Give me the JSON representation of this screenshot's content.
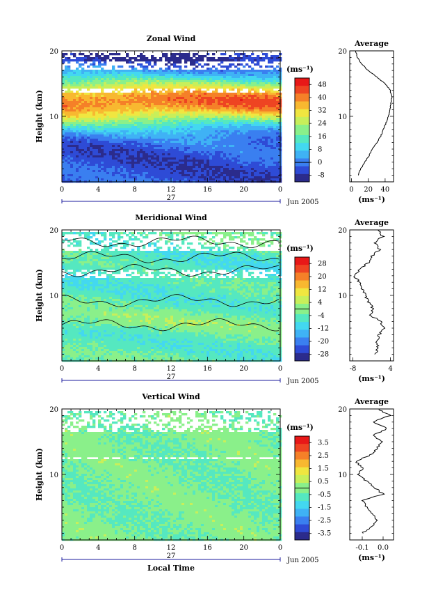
{
  "chart_data": [
    {
      "type": "heatmap",
      "title": "Zonal Wind",
      "ylabel": "Height (km)",
      "xlabel": "",
      "ylim": [
        0,
        20
      ],
      "yticks": [
        "20",
        "10"
      ],
      "ytick_values": [
        20,
        10
      ],
      "xticks": [
        "0",
        "4",
        "8",
        "12",
        "16",
        "20",
        "0"
      ],
      "date_label": "27",
      "month_label": "Jun 2005",
      "colorbar": {
        "unit": "(ms⁻¹)",
        "ticks": [
          "48",
          "40",
          "32",
          "24",
          "16",
          "8",
          "0",
          "-8"
        ],
        "range": [
          -12,
          52
        ]
      },
      "contours": false,
      "average": {
        "title": "Average",
        "xticks": [
          "0",
          "20",
          "40"
        ],
        "xtick_values": [
          0,
          20,
          40
        ],
        "xlim": [
          -2,
          50
        ],
        "xlabel": "(ms⁻¹)",
        "yticks": [
          "20",
          "10"
        ],
        "height_km": [
          1,
          2,
          3,
          4,
          5,
          6,
          7,
          8,
          9,
          10,
          11,
          12,
          13,
          14,
          15,
          16,
          17,
          18,
          19,
          20
        ],
        "values": [
          8,
          11,
          16,
          21,
          25,
          30,
          35,
          38,
          41,
          44,
          46,
          47,
          48,
          46,
          40,
          30,
          20,
          12,
          7,
          5
        ]
      }
    },
    {
      "type": "heatmap",
      "title": "Meridional Wind",
      "ylabel": "Height (km)",
      "xlabel": "",
      "ylim": [
        0,
        20
      ],
      "yticks": [
        "20",
        "10"
      ],
      "ytick_values": [
        20,
        10
      ],
      "xticks": [
        "0",
        "4",
        "8",
        "12",
        "16",
        "20",
        "0"
      ],
      "date_label": "27",
      "month_label": "Jun 2005",
      "colorbar": {
        "unit": "(ms⁻¹)",
        "ticks": [
          "28",
          "20",
          "12",
          "4",
          "-4",
          "-12",
          "-20",
          "-28"
        ],
        "range": [
          -32,
          32
        ]
      },
      "contours": true,
      "average": {
        "title": "Average",
        "xticks": [
          "-8",
          "4"
        ],
        "xtick_values": [
          -8,
          4
        ],
        "xlim": [
          -9,
          5
        ],
        "xlabel": "(ms⁻¹)",
        "yticks": [
          "20",
          "10"
        ],
        "height_km": [
          1,
          2,
          3,
          4,
          5,
          6,
          7,
          8,
          9,
          10,
          11,
          12,
          13,
          14,
          15,
          16,
          17,
          18,
          19,
          20
        ],
        "values": [
          -1,
          0,
          -0.5,
          0.5,
          2,
          1,
          -2.5,
          -1.5,
          -3,
          -4,
          -5,
          -6,
          -7.5,
          -5.5,
          -3,
          -2,
          0.5,
          -1,
          1.5,
          0
        ]
      }
    },
    {
      "type": "heatmap",
      "title": "Vertical Wind",
      "ylabel": "Height (km)",
      "xlabel": "Local Time",
      "ylim": [
        0,
        20
      ],
      "yticks": [
        "20",
        "10"
      ],
      "ytick_values": [
        20,
        10
      ],
      "xticks": [
        "0",
        "4",
        "8",
        "12",
        "16",
        "20",
        "0"
      ],
      "date_label": "27",
      "month_label": "Jun 2005",
      "colorbar": {
        "unit": "(ms⁻¹)",
        "ticks": [
          "3.5",
          "2.5",
          "1.5",
          "0.5",
          "-0.5",
          "-1.5",
          "-2.5",
          "-3.5"
        ],
        "range": [
          -4,
          4
        ]
      },
      "contours": false,
      "average": {
        "title": "Average",
        "xticks": [
          "-0.1",
          "0.0"
        ],
        "xtick_values": [
          -0.1,
          0.0
        ],
        "xlim": [
          -0.16,
          0.05
        ],
        "xlabel": "(ms⁻¹)",
        "yticks": [
          "20",
          "10"
        ],
        "height_km": [
          1,
          2,
          3,
          4,
          5,
          6,
          7,
          8,
          9,
          10,
          11,
          12,
          13,
          14,
          15,
          16,
          17,
          18,
          19,
          20
        ],
        "values": [
          -0.1,
          -0.06,
          -0.03,
          -0.05,
          -0.08,
          -0.1,
          0.0,
          -0.04,
          -0.08,
          -0.12,
          -0.1,
          -0.13,
          -0.06,
          -0.03,
          0.0,
          -0.05,
          0.02,
          -0.05,
          0.03,
          -0.02
        ]
      }
    }
  ]
}
